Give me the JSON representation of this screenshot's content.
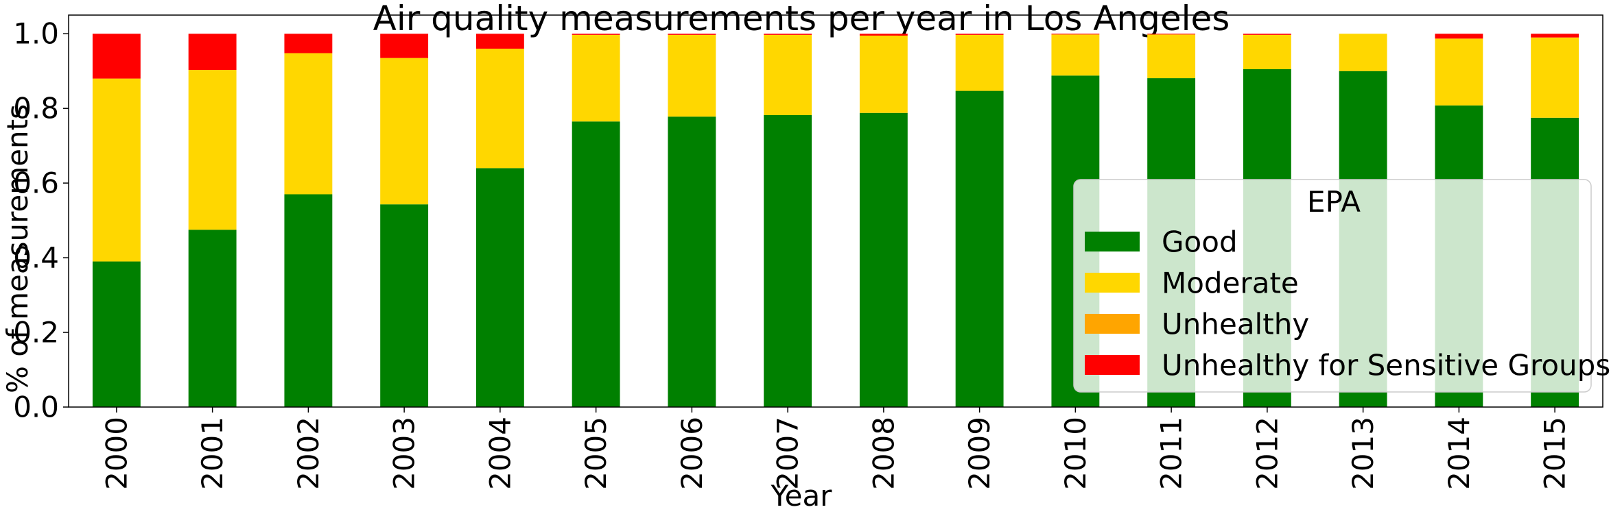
{
  "chart_data": {
    "type": "bar",
    "stacked": true,
    "title": "Air quality measurements per year in Los Angeles",
    "xlabel": "Year",
    "ylabel": "% of measurements",
    "ylim": [
      0,
      1.05
    ],
    "yticks": [
      "0.0",
      "0.2",
      "0.4",
      "0.6",
      "0.8",
      "1.0"
    ],
    "categories": [
      "2000",
      "2001",
      "2002",
      "2003",
      "2004",
      "2005",
      "2006",
      "2007",
      "2008",
      "2009",
      "2010",
      "2011",
      "2012",
      "2013",
      "2014",
      "2015"
    ],
    "series": [
      {
        "name": "Good",
        "color": "#008000",
        "values": [
          0.39,
          0.475,
          0.57,
          0.543,
          0.64,
          0.765,
          0.778,
          0.782,
          0.788,
          0.847,
          0.888,
          0.881,
          0.905,
          0.9,
          0.808,
          0.775
        ]
      },
      {
        "name": "Moderate",
        "color": "#ffd700",
        "values": [
          0.49,
          0.428,
          0.378,
          0.392,
          0.32,
          0.232,
          0.219,
          0.215,
          0.207,
          0.15,
          0.11,
          0.117,
          0.092,
          0.1,
          0.179,
          0.215
        ]
      },
      {
        "name": "Unhealthy",
        "color": "#ffa500",
        "values": [
          0,
          0,
          0,
          0,
          0,
          0,
          0,
          0,
          0,
          0,
          0,
          0,
          0,
          0,
          0,
          0
        ]
      },
      {
        "name": "Unhealthy for Sensitive Groups",
        "color": "#ff0000",
        "values": [
          0.12,
          0.097,
          0.052,
          0.065,
          0.04,
          0.003,
          0.003,
          0.003,
          0.005,
          0.003,
          0.002,
          0.002,
          0.003,
          0.0,
          0.013,
          0.01
        ]
      }
    ],
    "legend": {
      "title": "EPA",
      "placement": "lower-right"
    },
    "grid": false
  }
}
